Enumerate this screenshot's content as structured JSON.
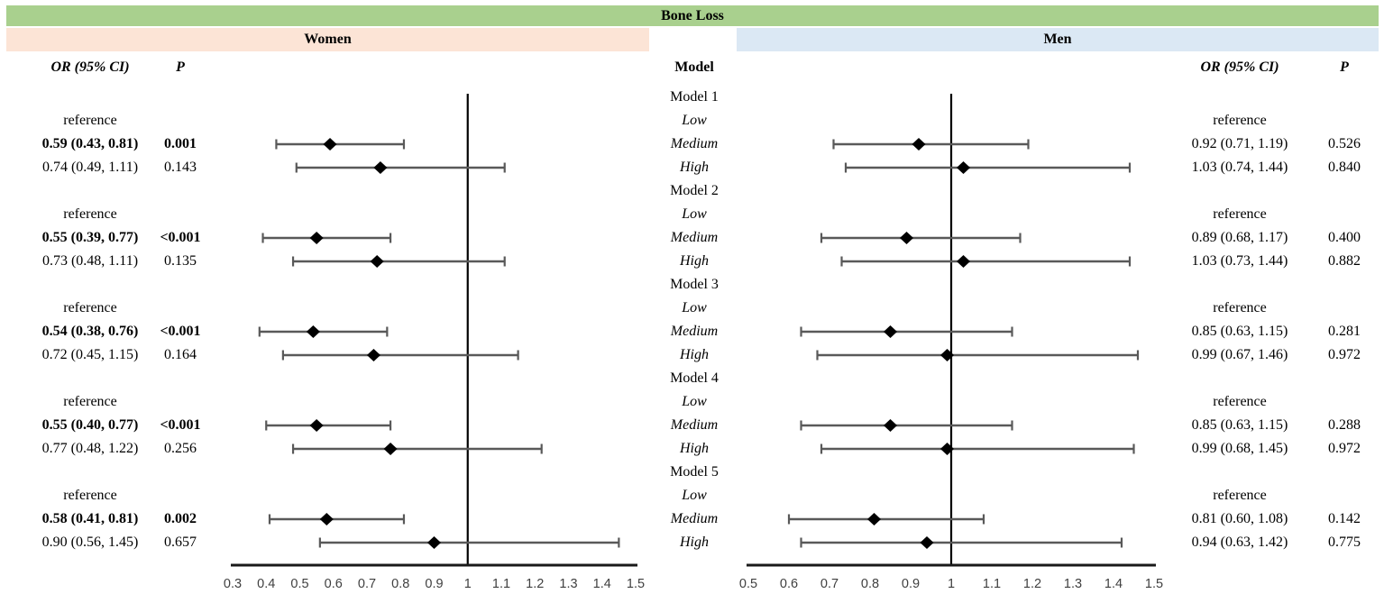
{
  "title": "Bone Loss",
  "panels_header": {
    "women": "Women",
    "men": "Men"
  },
  "columns": {
    "or": "OR (95% CI)",
    "p": "P",
    "model": "Model"
  },
  "colors": {
    "title_banner": "#a9d08e",
    "women_banner": "#fce4d6",
    "men_banner": "#dbe8f4",
    "ci_line": "#595959",
    "marker": "#000000",
    "axis_line": "#1a1a1a",
    "tick_label": "#3f3f3f"
  },
  "chart_data": {
    "type": "forest",
    "title": "Bone Loss",
    "groups": [
      "Women",
      "Men"
    ],
    "reference_label": "reference",
    "axes": {
      "women": {
        "xlim": [
          0.3,
          1.5
        ],
        "ticks": [
          "0.3",
          "0.4",
          "0.5",
          "0.6",
          "0.7",
          "0.8",
          "0.9",
          "1",
          "1.1",
          "1.2",
          "1.3",
          "1.4",
          "1.5"
        ],
        "refline": 1
      },
      "men": {
        "xlim": [
          0.5,
          1.5
        ],
        "ticks": [
          "0.5",
          "0.6",
          "0.7",
          "0.8",
          "0.9",
          "1",
          "1.1",
          "1.2",
          "1.3",
          "1.4",
          "1.5"
        ],
        "refline": 1
      }
    },
    "models": [
      {
        "name": "Model 1",
        "levels": [
          {
            "label": "Low",
            "women": {
              "text": "reference"
            },
            "men": {
              "text": "reference"
            }
          },
          {
            "label": "Medium",
            "women": {
              "text": "0.59 (0.43, 0.81)",
              "p": "0.001",
              "bold": true,
              "or": 0.59,
              "lo": 0.43,
              "hi": 0.81
            },
            "men": {
              "text": "0.92 (0.71, 1.19)",
              "p": "0.526",
              "or": 0.92,
              "lo": 0.71,
              "hi": 1.19
            }
          },
          {
            "label": "High",
            "women": {
              "text": "0.74 (0.49, 1.11)",
              "p": "0.143",
              "or": 0.74,
              "lo": 0.49,
              "hi": 1.11
            },
            "men": {
              "text": "1.03 (0.74, 1.44)",
              "p": "0.840",
              "or": 1.03,
              "lo": 0.74,
              "hi": 1.44
            }
          }
        ]
      },
      {
        "name": "Model 2",
        "levels": [
          {
            "label": "Low",
            "women": {
              "text": "reference"
            },
            "men": {
              "text": "reference"
            }
          },
          {
            "label": "Medium",
            "women": {
              "text": "0.55 (0.39, 0.77)",
              "p": "<0.001",
              "bold": true,
              "or": 0.55,
              "lo": 0.39,
              "hi": 0.77
            },
            "men": {
              "text": "0.89 (0.68, 1.17)",
              "p": "0.400",
              "or": 0.89,
              "lo": 0.68,
              "hi": 1.17
            }
          },
          {
            "label": "High",
            "women": {
              "text": "0.73 (0.48, 1.11)",
              "p": "0.135",
              "or": 0.73,
              "lo": 0.48,
              "hi": 1.11
            },
            "men": {
              "text": "1.03 (0.73, 1.44)",
              "p": "0.882",
              "or": 1.03,
              "lo": 0.73,
              "hi": 1.44
            }
          }
        ]
      },
      {
        "name": "Model 3",
        "levels": [
          {
            "label": "Low",
            "women": {
              "text": "reference"
            },
            "men": {
              "text": "reference"
            }
          },
          {
            "label": "Medium",
            "women": {
              "text": "0.54 (0.38, 0.76)",
              "p": "<0.001",
              "bold": true,
              "or": 0.54,
              "lo": 0.38,
              "hi": 0.76
            },
            "men": {
              "text": "0.85 (0.63, 1.15)",
              "p": "0.281",
              "or": 0.85,
              "lo": 0.63,
              "hi": 1.15
            }
          },
          {
            "label": "High",
            "women": {
              "text": "0.72 (0.45, 1.15)",
              "p": "0.164",
              "or": 0.72,
              "lo": 0.45,
              "hi": 1.15
            },
            "men": {
              "text": "0.99 (0.67, 1.46)",
              "p": "0.972",
              "or": 0.99,
              "lo": 0.67,
              "hi": 1.46
            }
          }
        ]
      },
      {
        "name": "Model 4",
        "levels": [
          {
            "label": "Low",
            "women": {
              "text": "reference"
            },
            "men": {
              "text": "reference"
            }
          },
          {
            "label": "Medium",
            "women": {
              "text": "0.55 (0.40, 0.77)",
              "p": "<0.001",
              "bold": true,
              "or": 0.55,
              "lo": 0.4,
              "hi": 0.77
            },
            "men": {
              "text": "0.85 (0.63, 1.15)",
              "p": "0.288",
              "or": 0.85,
              "lo": 0.63,
              "hi": 1.15
            }
          },
          {
            "label": "High",
            "women": {
              "text": "0.77 (0.48, 1.22)",
              "p": "0.256",
              "or": 0.77,
              "lo": 0.48,
              "hi": 1.22
            },
            "men": {
              "text": "0.99 (0.68, 1.45)",
              "p": "0.972",
              "or": 0.99,
              "lo": 0.68,
              "hi": 1.45
            }
          }
        ]
      },
      {
        "name": "Model 5",
        "levels": [
          {
            "label": "Low",
            "women": {
              "text": "reference"
            },
            "men": {
              "text": "reference"
            }
          },
          {
            "label": "Medium",
            "women": {
              "text": "0.58 (0.41, 0.81)",
              "p": "0.002",
              "bold": true,
              "or": 0.58,
              "lo": 0.41,
              "hi": 0.81
            },
            "men": {
              "text": "0.81 (0.60, 1.08)",
              "p": "0.142",
              "or": 0.81,
              "lo": 0.6,
              "hi": 1.08
            }
          },
          {
            "label": "High",
            "women": {
              "text": "0.90 (0.56, 1.45)",
              "p": "0.657",
              "or": 0.9,
              "lo": 0.56,
              "hi": 1.45
            },
            "men": {
              "text": "0.94 (0.63, 1.42)",
              "p": "0.775",
              "or": 0.94,
              "lo": 0.63,
              "hi": 1.42
            }
          }
        ]
      }
    ]
  }
}
